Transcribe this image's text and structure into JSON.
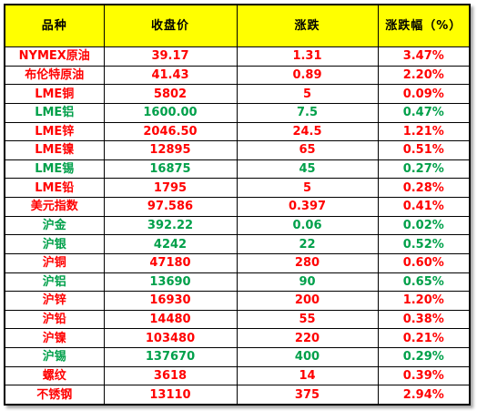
{
  "header": {
    "col_name": "品种",
    "col_close": "收盘价",
    "col_change": "涨跌",
    "col_pct": "涨跌幅（%）"
  },
  "colors": {
    "header_bg": "#ffff00",
    "up": "#ff0000",
    "down": "#00a04a"
  },
  "rows": [
    {
      "name": "NYMEX原油",
      "close": "39.17",
      "change": "1.31",
      "pct": "3.47%",
      "trend": "up"
    },
    {
      "name": "布伦特原油",
      "close": "41.43",
      "change": "0.89",
      "pct": "2.20%",
      "trend": "up"
    },
    {
      "name": "LME铜",
      "close": "5802",
      "change": "5",
      "pct": "0.09%",
      "trend": "up"
    },
    {
      "name": "LME铝",
      "close": "1600.00",
      "change": "7.5",
      "pct": "0.47%",
      "trend": "down"
    },
    {
      "name": "LME锌",
      "close": "2046.50",
      "change": "24.5",
      "pct": "1.21%",
      "trend": "up"
    },
    {
      "name": "LME镍",
      "close": "12895",
      "change": "65",
      "pct": "0.51%",
      "trend": "up"
    },
    {
      "name": "LME锡",
      "close": "16875",
      "change": "45",
      "pct": "0.27%",
      "trend": "down"
    },
    {
      "name": "LME铅",
      "close": "1795",
      "change": "5",
      "pct": "0.28%",
      "trend": "up"
    },
    {
      "name": "美元指数",
      "close": "97.586",
      "change": "0.397",
      "pct": "0.41%",
      "trend": "up"
    },
    {
      "name": "沪金",
      "close": "392.22",
      "change": "0.06",
      "pct": "0.02%",
      "trend": "down"
    },
    {
      "name": "沪银",
      "close": "4242",
      "change": "22",
      "pct": "0.52%",
      "trend": "down"
    },
    {
      "name": "沪铜",
      "close": "47180",
      "change": "280",
      "pct": "0.60%",
      "trend": "up"
    },
    {
      "name": "沪铝",
      "close": "13690",
      "change": "90",
      "pct": "0.65%",
      "trend": "down"
    },
    {
      "name": "沪锌",
      "close": "16930",
      "change": "200",
      "pct": "1.20%",
      "trend": "up"
    },
    {
      "name": "沪铅",
      "close": "14480",
      "change": "55",
      "pct": "0.38%",
      "trend": "up"
    },
    {
      "name": "沪镍",
      "close": "103480",
      "change": "220",
      "pct": "0.21%",
      "trend": "up"
    },
    {
      "name": "沪锡",
      "close": "137670",
      "change": "400",
      "pct": "0.29%",
      "trend": "down"
    },
    {
      "name": "螺纹",
      "close": "3618",
      "change": "14",
      "pct": "0.39%",
      "trend": "up"
    },
    {
      "name": "不锈钢",
      "close": "13110",
      "change": "375",
      "pct": "2.94%",
      "trend": "up"
    }
  ]
}
